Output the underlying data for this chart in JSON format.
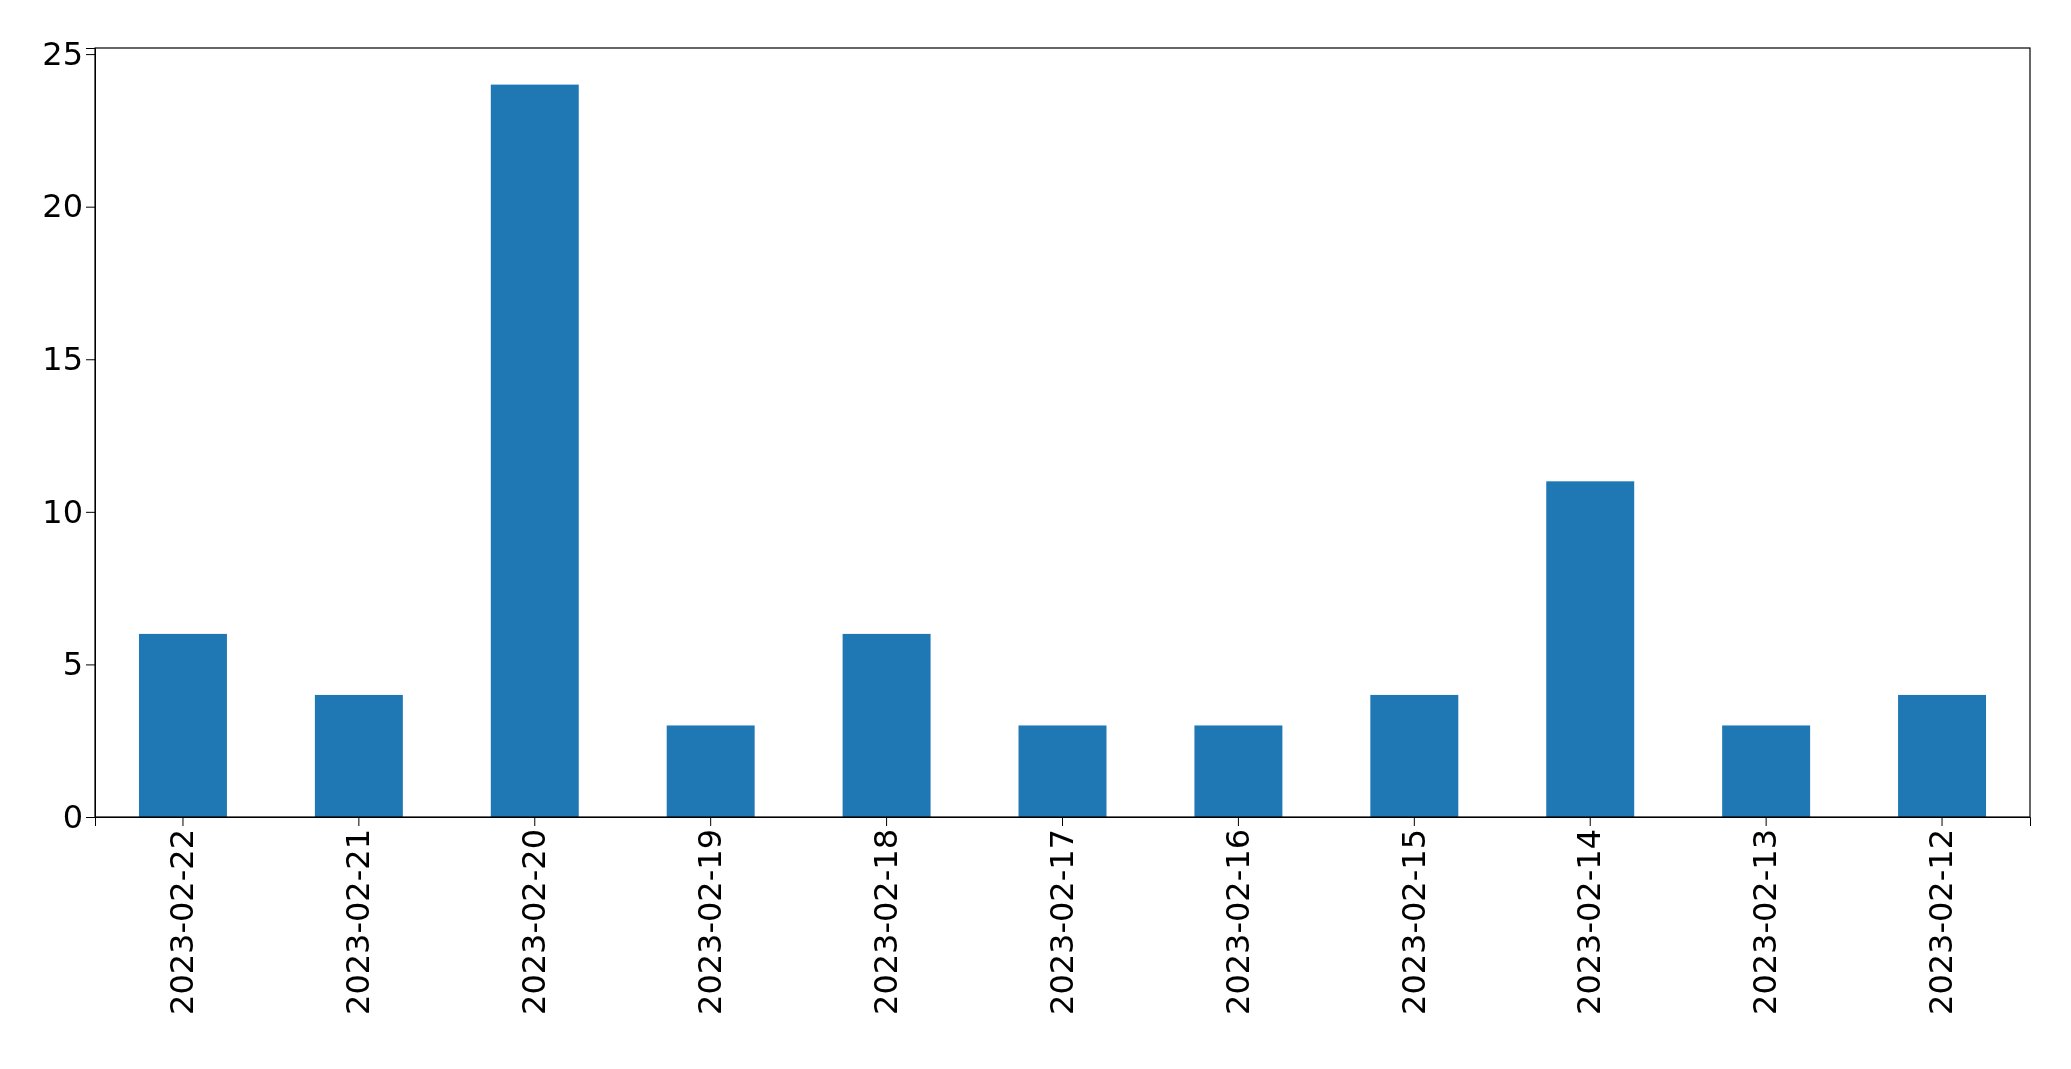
{
  "chart_data": {
    "type": "bar",
    "categories": [
      "2023-02-22",
      "2023-02-21",
      "2023-02-20",
      "2023-02-19",
      "2023-02-18",
      "2023-02-17",
      "2023-02-16",
      "2023-02-15",
      "2023-02-14",
      "2023-02-13",
      "2023-02-12"
    ],
    "values": [
      6,
      4,
      24,
      3,
      6,
      3,
      3,
      4,
      11,
      3,
      4
    ],
    "color": "#1f77b4",
    "ylim": [
      0,
      25.2
    ],
    "yticks": [
      0,
      5,
      10,
      15,
      20,
      25
    ],
    "grid": false
  }
}
